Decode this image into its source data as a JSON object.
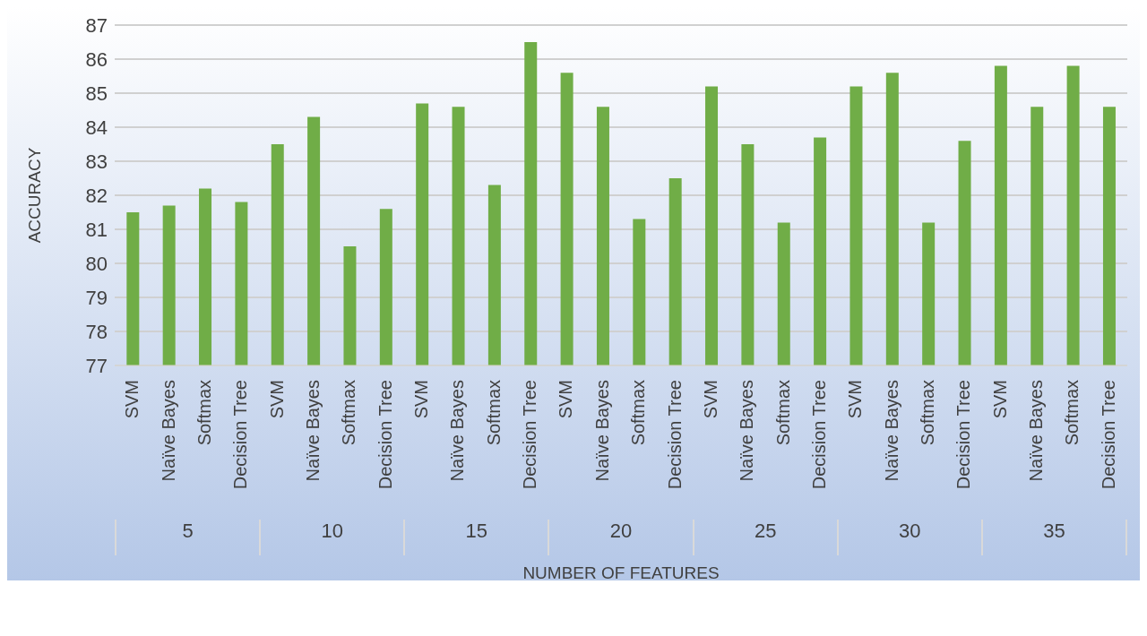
{
  "chart_data": {
    "type": "bar",
    "xlabel": "NUMBER OF FEATURES",
    "ylabel": "ACCURACY",
    "categories": [
      "SVM",
      "Naïve Bayes",
      "Softmax",
      "Decision Tree",
      "SVM",
      "Naïve Bayes",
      "Softmax",
      "Decision Tree",
      "SVM",
      "Naïve Bayes",
      "Softmax",
      "Decision Tree",
      "SVM",
      "Naïve Bayes",
      "Softmax",
      "Decision Tree",
      "SVM",
      "Naïve Bayes",
      "Softmax",
      "Decision Tree",
      "SVM",
      "Naïve Bayes",
      "Softmax",
      "Decision Tree",
      "SVM",
      "Naïve Bayes",
      "Softmax",
      "Decision Tree"
    ],
    "values": [
      81.5,
      81.7,
      82.2,
      81.8,
      83.5,
      84.3,
      80.5,
      81.6,
      84.7,
      84.6,
      82.3,
      86.5,
      85.6,
      84.6,
      81.3,
      82.5,
      85.2,
      83.5,
      81.2,
      83.7,
      85.2,
      85.6,
      81.2,
      83.6,
      85.8,
      84.6,
      85.8,
      84.6
    ],
    "color": "#70ad47",
    "annotations": [
      "5",
      "10",
      "15",
      "20",
      "25",
      "30",
      "35"
    ],
    "ylim": [
      77,
      87
    ],
    "yticks": [
      77,
      78,
      79,
      80,
      81,
      82,
      83,
      84,
      85,
      86,
      87
    ],
    "grid": "y"
  }
}
